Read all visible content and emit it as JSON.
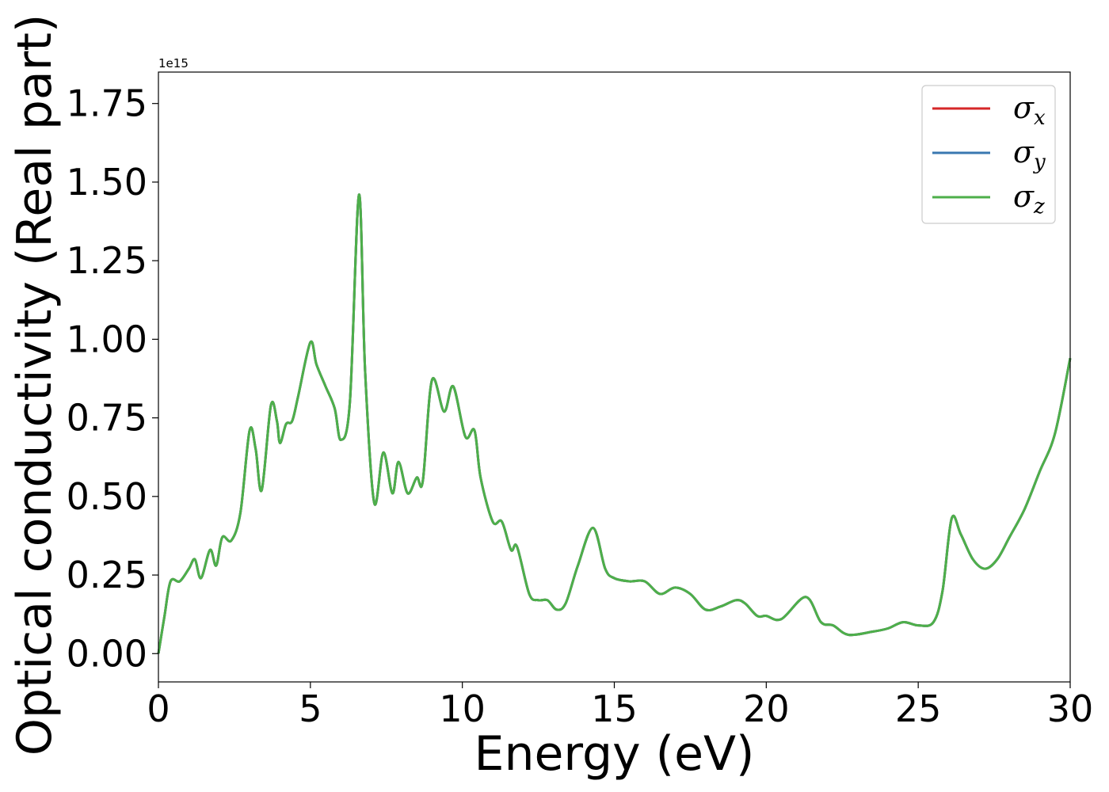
{
  "chart_data": {
    "type": "line",
    "xlabel": "Energy (eV)",
    "ylabel": "Optical conductivity (Real part)",
    "y_offset_label": "1e15",
    "xlim": [
      0,
      30
    ],
    "ylim": [
      -0.09,
      1.85
    ],
    "x_ticks": [
      0,
      5,
      10,
      15,
      20,
      25,
      30
    ],
    "x_tick_labels": [
      "0",
      "5",
      "10",
      "15",
      "20",
      "25",
      "30"
    ],
    "y_ticks": [
      0.0,
      0.25,
      0.5,
      0.75,
      1.0,
      1.25,
      1.5,
      1.75
    ],
    "y_tick_labels": [
      "0.00",
      "0.25",
      "0.50",
      "0.75",
      "1.00",
      "1.25",
      "1.50",
      "1.75"
    ],
    "grid": false,
    "legend_position": "top-right",
    "x": [
      0,
      0.2,
      0.4,
      0.7,
      1.0,
      1.2,
      1.4,
      1.7,
      1.9,
      2.1,
      2.4,
      2.7,
      3.0,
      3.2,
      3.4,
      3.7,
      3.9,
      4.0,
      4.2,
      4.4,
      4.6,
      5.0,
      5.2,
      5.5,
      5.8,
      6.0,
      6.3,
      6.6,
      6.8,
      7.1,
      7.4,
      7.7,
      7.9,
      8.2,
      8.5,
      8.7,
      9.0,
      9.4,
      9.7,
      10.1,
      10.4,
      10.6,
      11.0,
      11.3,
      11.6,
      11.8,
      12.2,
      12.5,
      12.8,
      13.1,
      13.4,
      13.8,
      14.3,
      14.7,
      15.0,
      15.5,
      16.0,
      16.5,
      17.0,
      17.5,
      18.0,
      18.5,
      19.0,
      19.3,
      19.7,
      20.0,
      20.5,
      21.3,
      21.8,
      22.2,
      22.7,
      23.5,
      24.0,
      24.5,
      25.0,
      25.5,
      25.8,
      26.1,
      26.4,
      26.8,
      27.2,
      27.6,
      28.0,
      28.5,
      29.0,
      29.5,
      30.0
    ],
    "series": [
      {
        "name": "σx",
        "color": "#d62728",
        "values": [
          0.0,
          0.12,
          0.23,
          0.23,
          0.27,
          0.3,
          0.24,
          0.33,
          0.28,
          0.37,
          0.36,
          0.45,
          0.71,
          0.65,
          0.52,
          0.79,
          0.74,
          0.67,
          0.73,
          0.74,
          0.82,
          0.99,
          0.92,
          0.85,
          0.78,
          0.68,
          0.8,
          1.46,
          0.9,
          0.48,
          0.64,
          0.51,
          0.61,
          0.51,
          0.56,
          0.55,
          0.87,
          0.77,
          0.85,
          0.69,
          0.71,
          0.56,
          0.42,
          0.42,
          0.33,
          0.34,
          0.19,
          0.17,
          0.17,
          0.14,
          0.16,
          0.28,
          0.4,
          0.27,
          0.24,
          0.23,
          0.23,
          0.19,
          0.21,
          0.19,
          0.14,
          0.15,
          0.17,
          0.16,
          0.12,
          0.12,
          0.11,
          0.18,
          0.1,
          0.09,
          0.06,
          0.07,
          0.08,
          0.1,
          0.09,
          0.1,
          0.2,
          0.43,
          0.38,
          0.3,
          0.27,
          0.3,
          0.37,
          0.46,
          0.58,
          0.7,
          0.94
        ]
      },
      {
        "name": "σy",
        "color": "#3a78b0",
        "values": [
          0.0,
          0.12,
          0.23,
          0.23,
          0.27,
          0.3,
          0.24,
          0.33,
          0.28,
          0.37,
          0.36,
          0.45,
          0.71,
          0.65,
          0.52,
          0.79,
          0.74,
          0.67,
          0.73,
          0.74,
          0.82,
          0.99,
          0.92,
          0.85,
          0.78,
          0.68,
          0.8,
          1.46,
          0.9,
          0.48,
          0.64,
          0.51,
          0.61,
          0.51,
          0.56,
          0.55,
          0.87,
          0.77,
          0.85,
          0.69,
          0.71,
          0.56,
          0.42,
          0.42,
          0.33,
          0.34,
          0.19,
          0.17,
          0.17,
          0.14,
          0.16,
          0.28,
          0.4,
          0.27,
          0.24,
          0.23,
          0.23,
          0.19,
          0.21,
          0.19,
          0.14,
          0.15,
          0.17,
          0.16,
          0.12,
          0.12,
          0.11,
          0.18,
          0.1,
          0.09,
          0.06,
          0.07,
          0.08,
          0.1,
          0.09,
          0.1,
          0.2,
          0.43,
          0.38,
          0.3,
          0.27,
          0.3,
          0.37,
          0.46,
          0.58,
          0.7,
          0.94
        ]
      },
      {
        "name": "σz",
        "color": "#4daf4a",
        "values": [
          0.0,
          0.12,
          0.23,
          0.23,
          0.27,
          0.3,
          0.24,
          0.33,
          0.28,
          0.37,
          0.36,
          0.45,
          0.71,
          0.65,
          0.52,
          0.79,
          0.74,
          0.67,
          0.73,
          0.74,
          0.82,
          0.99,
          0.92,
          0.85,
          0.78,
          0.68,
          0.8,
          1.46,
          0.9,
          0.48,
          0.64,
          0.51,
          0.61,
          0.51,
          0.56,
          0.55,
          0.87,
          0.77,
          0.85,
          0.69,
          0.71,
          0.56,
          0.42,
          0.42,
          0.33,
          0.34,
          0.19,
          0.17,
          0.17,
          0.14,
          0.16,
          0.28,
          0.4,
          0.27,
          0.24,
          0.23,
          0.23,
          0.19,
          0.21,
          0.19,
          0.14,
          0.15,
          0.17,
          0.16,
          0.12,
          0.12,
          0.11,
          0.18,
          0.1,
          0.09,
          0.06,
          0.07,
          0.08,
          0.1,
          0.09,
          0.1,
          0.2,
          0.43,
          0.38,
          0.3,
          0.27,
          0.3,
          0.37,
          0.46,
          0.58,
          0.7,
          0.94
        ]
      }
    ],
    "legend": [
      {
        "base": "σ",
        "sub": "x",
        "color": "#d62728"
      },
      {
        "base": "σ",
        "sub": "y",
        "color": "#3a78b0"
      },
      {
        "base": "σ",
        "sub": "z",
        "color": "#4daf4a"
      }
    ]
  }
}
